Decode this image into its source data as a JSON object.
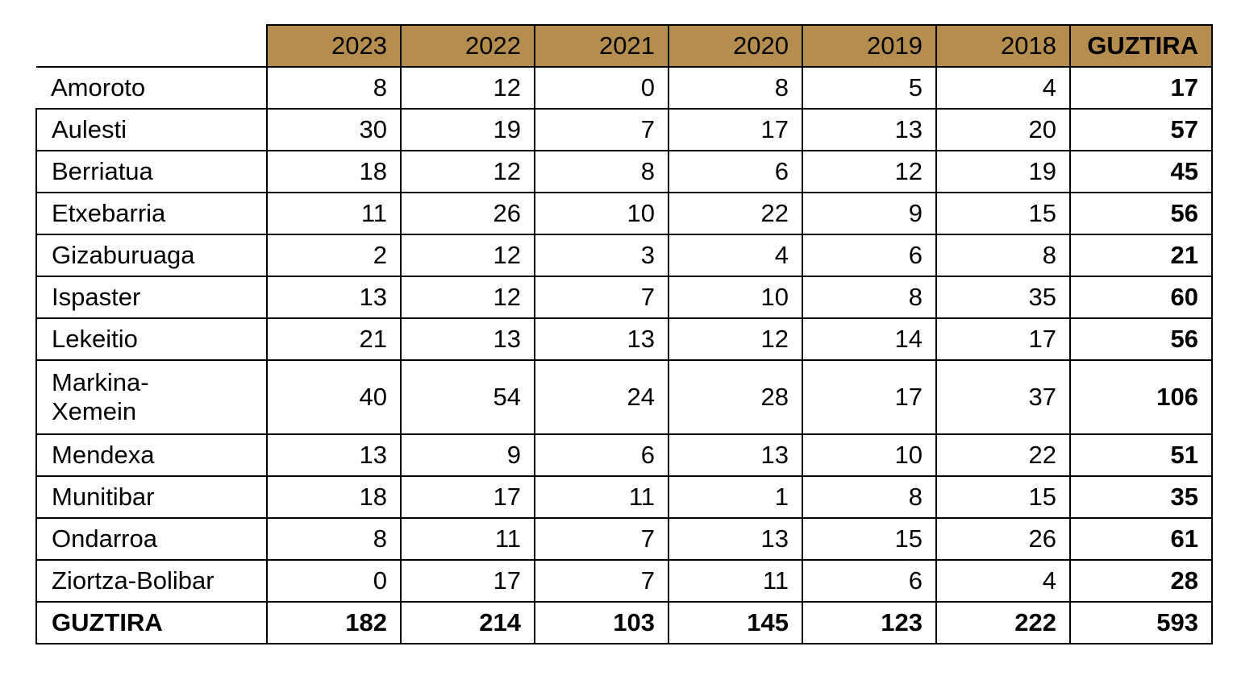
{
  "table": {
    "columns": [
      "2023",
      "2022",
      "2021",
      "2020",
      "2019",
      "2018",
      "GUZTIRA"
    ],
    "rows": [
      {
        "name": "Amoroto",
        "values": [
          "8",
          "12",
          "0",
          "8",
          "5",
          "4"
        ],
        "total": "17"
      },
      {
        "name": "Aulesti",
        "values": [
          "30",
          "19",
          "7",
          "17",
          "13",
          "20"
        ],
        "total": "57"
      },
      {
        "name": "Berriatua",
        "values": [
          "18",
          "12",
          "8",
          "6",
          "12",
          "19"
        ],
        "total": "45"
      },
      {
        "name": "Etxebarria",
        "values": [
          "11",
          "26",
          "10",
          "22",
          "9",
          "15"
        ],
        "total": "56"
      },
      {
        "name": "Gizaburuaga",
        "values": [
          "2",
          "12",
          "3",
          "4",
          "6",
          "8"
        ],
        "total": "21"
      },
      {
        "name": "Ispaster",
        "values": [
          "13",
          "12",
          "7",
          "10",
          "8",
          "35"
        ],
        "total": "60"
      },
      {
        "name": "Lekeitio",
        "values": [
          "21",
          "13",
          "13",
          "12",
          "14",
          "17"
        ],
        "total": "56"
      },
      {
        "name": "Markina-Xemein",
        "values": [
          "40",
          "54",
          "24",
          "28",
          "17",
          "37"
        ],
        "total": "106"
      },
      {
        "name": "Mendexa",
        "values": [
          "13",
          "9",
          "6",
          "13",
          "10",
          "22"
        ],
        "total": "51"
      },
      {
        "name": "Munitibar",
        "values": [
          "18",
          "17",
          "11",
          "1",
          "8",
          "15"
        ],
        "total": "35"
      },
      {
        "name": "Ondarroa",
        "values": [
          "8",
          "11",
          "7",
          "13",
          "15",
          "26"
        ],
        "total": "61"
      },
      {
        "name": "Ziortza-Bolibar",
        "values": [
          "0",
          "17",
          "7",
          "11",
          "6",
          "4"
        ],
        "total": "28"
      }
    ],
    "total_row": {
      "name": "GUZTIRA",
      "values": [
        "182",
        "214",
        "103",
        "145",
        "123",
        "222"
      ],
      "total": "593"
    }
  },
  "colors": {
    "header_background": "#b58e4f",
    "border": "#000000"
  }
}
